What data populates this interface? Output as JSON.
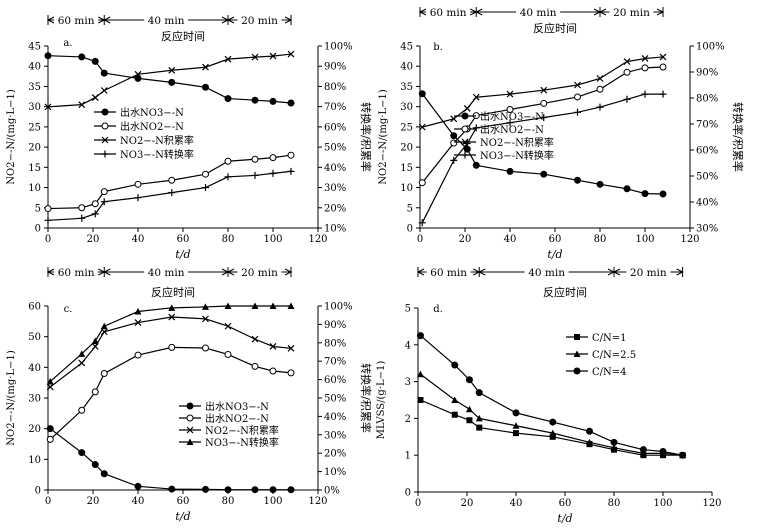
{
  "chart_data": [
    {
      "type": "line",
      "panel_label": "a.",
      "phases": [
        {
          "label": "60 min",
          "from": 0,
          "to": 25
        },
        {
          "label": "40 min",
          "from": 25,
          "to": 80
        },
        {
          "label": "20 min",
          "from": 80,
          "to": 108
        }
      ],
      "phase_title": "反应时间",
      "xlabel": "t/d",
      "ylabel": "NO2−-N/(mg·L−1)",
      "ylabel2": "转换率/积累率",
      "xlim": [
        0,
        120
      ],
      "xticks": [
        0,
        20,
        40,
        60,
        80,
        100,
        120
      ],
      "ylim": [
        0,
        45
      ],
      "yticks": [
        0,
        5,
        10,
        15,
        20,
        25,
        30,
        35,
        40,
        45
      ],
      "y2lim": [
        10,
        100
      ],
      "y2ticks": [
        "10%",
        "20%",
        "30%",
        "40%",
        "50%",
        "60%",
        "70%",
        "80%",
        "90%",
        "100%"
      ],
      "legend": {
        "position": "center-left",
        "entries": [
          "出水NO3−-N",
          "出水NO2−-N",
          "NO2−-N积累率",
          "NO3−-N转换率"
        ]
      },
      "series": [
        {
          "name": "出水NO3−-N",
          "axis": "left",
          "marker": "circle-filled",
          "x": [
            0,
            15,
            21,
            25,
            40,
            55,
            70,
            80,
            92,
            100,
            108
          ],
          "values": [
            42.6,
            42.3,
            41.2,
            38.3,
            37.0,
            36.0,
            34.8,
            32.0,
            31.6,
            31.3,
            30.9
          ]
        },
        {
          "name": "出水NO2−-N",
          "axis": "left",
          "marker": "circle-open",
          "x": [
            0,
            15,
            21,
            25,
            40,
            55,
            70,
            80,
            92,
            100,
            108
          ],
          "values": [
            4.8,
            5.0,
            6.0,
            9.0,
            10.8,
            11.8,
            13.3,
            16.5,
            17.0,
            17.4,
            18.0
          ]
        },
        {
          "name": "NO2−-N积累率",
          "axis": "right",
          "marker": "x",
          "x": [
            0,
            15,
            21,
            25,
            40,
            55,
            70,
            80,
            92,
            100,
            108
          ],
          "values": [
            69.9,
            71.0,
            74.5,
            78.0,
            86.0,
            88.0,
            89.5,
            93.5,
            94.5,
            95.0,
            96.0
          ]
        },
        {
          "name": "NO3−-N转换率",
          "axis": "right",
          "marker": "plus",
          "x": [
            0,
            15,
            21,
            25,
            40,
            55,
            70,
            80,
            92,
            100,
            108
          ],
          "values": [
            13.8,
            14.8,
            17.0,
            23.0,
            25.0,
            27.5,
            30.0,
            35.3,
            36.0,
            37.0,
            38.0
          ]
        }
      ]
    },
    {
      "type": "line",
      "panel_label": "b.",
      "phases": [
        {
          "label": "60 min",
          "from": 0,
          "to": 25
        },
        {
          "label": "40 min",
          "from": 25,
          "to": 80
        },
        {
          "label": "20 min",
          "from": 80,
          "to": 108
        }
      ],
      "phase_title": "反应时间",
      "xlabel": "t/d",
      "ylabel": "NO2−-N/(mg·L−1)",
      "ylabel2": "转换率/积累率",
      "xlim": [
        0,
        120
      ],
      "xticks": [
        0,
        20,
        40,
        60,
        80,
        100,
        120
      ],
      "ylim": [
        0,
        45
      ],
      "yticks": [
        0,
        5,
        10,
        15,
        20,
        25,
        30,
        35,
        40,
        45
      ],
      "y2lim": [
        30,
        100
      ],
      "y2ticks": [
        "30%",
        "40%",
        "50%",
        "60%",
        "70%",
        "80%",
        "90%",
        "100%"
      ],
      "legend": {
        "position": "center-left",
        "entries": [
          "出水NO3−-N",
          "出水NO2−-N",
          "NO2−-N积累率",
          "NO3−-N转换率"
        ]
      },
      "series": [
        {
          "name": "出水NO3−-N",
          "axis": "left",
          "marker": "circle-filled",
          "x": [
            1,
            15,
            21,
            25,
            40,
            55,
            70,
            80,
            92,
            100,
            108
          ],
          "values": [
            33.2,
            22.8,
            19.5,
            15.5,
            14.0,
            13.3,
            11.8,
            10.8,
            9.7,
            8.5,
            8.4
          ]
        },
        {
          "name": "出水NO2−-N",
          "axis": "left",
          "marker": "circle-open",
          "x": [
            1,
            15,
            21,
            25,
            40,
            55,
            70,
            80,
            92,
            100,
            108
          ],
          "values": [
            11.2,
            21.0,
            24.5,
            27.8,
            29.3,
            30.8,
            32.4,
            34.3,
            38.5,
            39.6,
            39.8
          ]
        },
        {
          "name": "NO2−-N积累率",
          "axis": "right",
          "marker": "x",
          "x": [
            1,
            15,
            21,
            25,
            40,
            55,
            70,
            80,
            92,
            100,
            108
          ],
          "values": [
            68.8,
            72.0,
            76.0,
            80.3,
            81.5,
            83.0,
            85.0,
            87.5,
            94.0,
            95.2,
            95.8
          ]
        },
        {
          "name": "NO3−-N转换率",
          "axis": "right",
          "marker": "plus",
          "x": [
            1,
            15,
            21,
            25,
            40,
            55,
            70,
            80,
            92,
            100,
            108
          ],
          "values": [
            32.0,
            56.0,
            62.5,
            68.5,
            70.5,
            72.5,
            74.5,
            76.5,
            79.5,
            81.5,
            81.5
          ]
        }
      ]
    },
    {
      "type": "line",
      "panel_label": "c.",
      "phases": [
        {
          "label": "60 min",
          "from": 0,
          "to": 25
        },
        {
          "label": "40 min",
          "from": 25,
          "to": 80
        },
        {
          "label": "20 min",
          "from": 80,
          "to": 108
        }
      ],
      "phase_title": "反应时间",
      "xlabel": "t/d",
      "ylabel": "NO2−-N/(mg·L−1)",
      "ylabel2": "转换率/积累率",
      "xlim": [
        0,
        120
      ],
      "xticks": [
        0,
        20,
        40,
        60,
        80,
        100,
        120
      ],
      "ylim": [
        0,
        60
      ],
      "yticks": [
        0,
        10,
        20,
        30,
        40,
        50,
        60
      ],
      "y2lim": [
        0,
        100
      ],
      "y2ticks": [
        "0%",
        "10%",
        "20%",
        "30%",
        "40%",
        "50%",
        "60%",
        "70%",
        "80%",
        "90%",
        "100%"
      ],
      "legend": {
        "position": "bottom-center",
        "entries": [
          "出水NO3−-N",
          "出水NO2−-N",
          "NO2−-N积累率",
          "NO3−-N转换率"
        ]
      },
      "series": [
        {
          "name": "出水NO3−-N",
          "axis": "left",
          "marker": "circle-filled",
          "x": [
            1,
            15,
            21,
            25,
            40,
            55,
            70,
            80,
            92,
            100,
            108
          ],
          "values": [
            20.0,
            12.2,
            8.3,
            5.3,
            1.2,
            0.3,
            0.2,
            0.1,
            0.1,
            0.1,
            0.1
          ]
        },
        {
          "name": "出水NO2−-N",
          "axis": "left",
          "marker": "circle-open",
          "x": [
            1,
            15,
            21,
            25,
            40,
            55,
            70,
            80,
            92,
            100,
            108
          ],
          "values": [
            16.5,
            26.0,
            32.0,
            38.0,
            44.0,
            46.5,
            46.3,
            44.2,
            40.3,
            38.8,
            38.2
          ]
        },
        {
          "name": "NO2−-N积累率",
          "axis": "right",
          "marker": "x",
          "x": [
            1,
            15,
            21,
            25,
            40,
            55,
            70,
            80,
            92,
            100,
            108
          ],
          "values": [
            56.0,
            69.0,
            78.0,
            86.0,
            91.0,
            94.0,
            93.0,
            89.0,
            82.0,
            78.0,
            77.0
          ]
        },
        {
          "name": "NO3−-N转换率",
          "axis": "right",
          "marker": "triangle",
          "x": [
            1,
            15,
            21,
            25,
            40,
            55,
            70,
            80,
            92,
            100,
            108
          ],
          "values": [
            59.0,
            74.0,
            81.0,
            89.0,
            97.0,
            99.0,
            99.5,
            100,
            100,
            100,
            100
          ]
        }
      ]
    },
    {
      "type": "line",
      "panel_label": "d.",
      "phases": [
        {
          "label": "60 min",
          "from": 0,
          "to": 25
        },
        {
          "label": "40 min",
          "from": 25,
          "to": 80
        },
        {
          "label": "20 min",
          "from": 80,
          "to": 108
        }
      ],
      "phase_title": "反应时间",
      "xlabel": "t/d",
      "ylabel": "MLVSS/(g·L−1)",
      "xlim": [
        0,
        120
      ],
      "xticks": [
        0,
        20,
        40,
        60,
        80,
        100,
        120
      ],
      "ylim": [
        0,
        5
      ],
      "yticks": [
        0,
        1,
        2,
        3,
        4,
        5
      ],
      "legend": {
        "position": "top-right",
        "entries": [
          "C/N=1",
          "C/N=2.5",
          "C/N=4"
        ]
      },
      "series": [
        {
          "name": "C/N=1",
          "marker": "square",
          "x": [
            1,
            15,
            21,
            25,
            40,
            55,
            70,
            80,
            92,
            100,
            108
          ],
          "values": [
            2.5,
            2.1,
            1.95,
            1.75,
            1.6,
            1.5,
            1.3,
            1.15,
            1.0,
            1.0,
            1.0
          ]
        },
        {
          "name": "C/N=2.5",
          "marker": "triangle",
          "x": [
            1,
            15,
            21,
            25,
            40,
            55,
            70,
            80,
            92,
            100,
            108
          ],
          "values": [
            3.2,
            2.5,
            2.25,
            2.0,
            1.8,
            1.6,
            1.35,
            1.2,
            1.05,
            1.05,
            1.0
          ]
        },
        {
          "name": "C/N=4",
          "marker": "circle-filled",
          "x": [
            1,
            15,
            21,
            25,
            40,
            55,
            70,
            80,
            92,
            100,
            108
          ],
          "values": [
            4.25,
            3.45,
            3.05,
            2.7,
            2.15,
            1.9,
            1.65,
            1.35,
            1.15,
            1.1,
            1.0
          ]
        }
      ]
    }
  ]
}
